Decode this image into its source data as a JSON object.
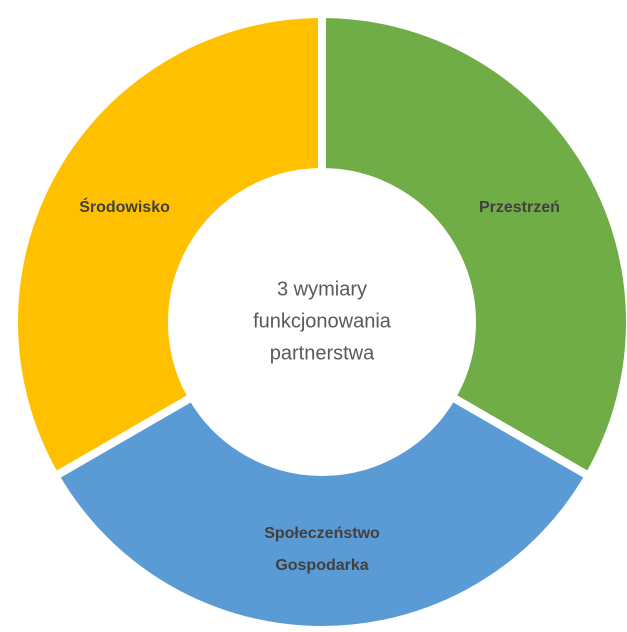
{
  "center_text": [
    "3 wymiary",
    "funkcjonowania",
    "partnerstwa"
  ],
  "segments": [
    {
      "label": [
        "Przestrzeń"
      ],
      "color": "#70ad47"
    },
    {
      "label": [
        "Społeczeństwo",
        "Gospodarka"
      ],
      "color": "#5b9bd5"
    },
    {
      "label": [
        "Środowisko"
      ],
      "color": "#ffc000"
    }
  ]
}
